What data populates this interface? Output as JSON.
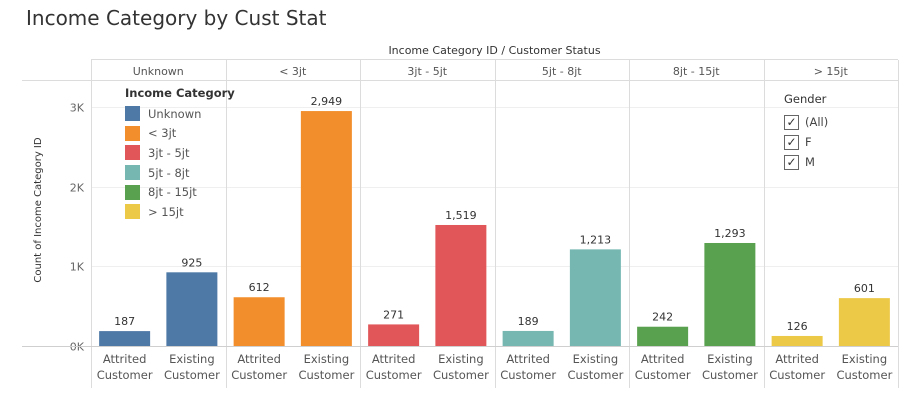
{
  "title": "Income Category by Cust Stat",
  "chart_data": {
    "type": "bar",
    "header": "Income Category ID / Customer Status",
    "ylabel": "Count of Income Category ID",
    "ylim": [
      0,
      3000
    ],
    "yticks": [
      {
        "v": 0,
        "label": "0K"
      },
      {
        "v": 1000,
        "label": "1K"
      },
      {
        "v": 2000,
        "label": "2K"
      },
      {
        "v": 3000,
        "label": "3K"
      }
    ],
    "grid": true,
    "legend_position": "top-left",
    "statuses": [
      "Attrited Customer",
      "Existing Customer"
    ],
    "status_lines": [
      [
        "Attrited",
        "Customer"
      ],
      [
        "Existing",
        "Customer"
      ]
    ],
    "groups": [
      {
        "label": "Unknown",
        "color": "#4e79a7",
        "values": [
          187,
          925
        ],
        "value_labels": [
          "187",
          "925"
        ]
      },
      {
        "label": "< 3jt",
        "color": "#f28e2b",
        "values": [
          612,
          2949
        ],
        "value_labels": [
          "612",
          "2,949"
        ]
      },
      {
        "label": "3jt - 5jt",
        "color": "#e15759",
        "values": [
          271,
          1519
        ],
        "value_labels": [
          "271",
          "1,519"
        ]
      },
      {
        "label": "5jt - 8jt",
        "color": "#76b7b2",
        "values": [
          189,
          1213
        ],
        "value_labels": [
          "189",
          "1,213"
        ]
      },
      {
        "label": "8jt - 15jt",
        "color": "#59a14f",
        "values": [
          242,
          1293
        ],
        "value_labels": [
          "242",
          "1,293"
        ]
      },
      {
        "label": "> 15jt",
        "color": "#edc948",
        "values": [
          126,
          601
        ],
        "value_labels": [
          "126",
          "601"
        ]
      }
    ]
  },
  "legend": {
    "title": "Income Category",
    "items": [
      {
        "label": "Unknown",
        "color": "#4e79a7"
      },
      {
        "label": "< 3jt",
        "color": "#f28e2b"
      },
      {
        "label": "3jt - 5jt",
        "color": "#e15759"
      },
      {
        "label": "5jt - 8jt",
        "color": "#76b7b2"
      },
      {
        "label": "8jt - 15jt",
        "color": "#59a14f"
      },
      {
        "label": "> 15jt",
        "color": "#edc948"
      }
    ]
  },
  "filter": {
    "title": "Gender",
    "items": [
      {
        "label": "(All)",
        "checked": true
      },
      {
        "label": "F",
        "checked": true
      },
      {
        "label": "M",
        "checked": true
      }
    ]
  }
}
